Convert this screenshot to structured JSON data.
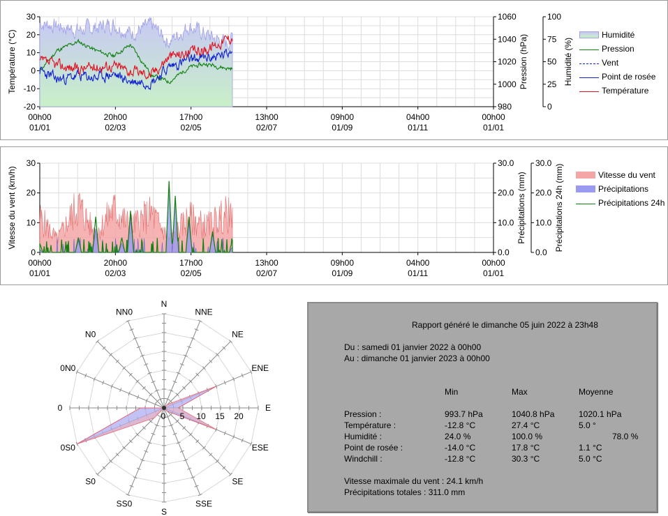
{
  "colors": {
    "temperature": "#e01020",
    "dewpoint": "#1020d0",
    "pressure": "#108010",
    "wind_line": "#1020d0",
    "humidity_fill_top": "#c8c8f4",
    "humidity_fill_bottom": "#c8f0c8",
    "wind_fill": "#f4a6a6",
    "precip_fill": "#9a9af0",
    "precip24": "#108010",
    "report_bg": "#a8a8a8",
    "rose_fill": "#a8a8f0",
    "rose_line": "#e06070"
  },
  "x_ticks": [
    {
      "time": "00h00",
      "date": "01/01"
    },
    {
      "time": "20h00",
      "date": "02/03"
    },
    {
      "time": "17h00",
      "date": "02/05"
    },
    {
      "time": "13h00",
      "date": "02/07"
    },
    {
      "time": "09h00",
      "date": "01/09"
    },
    {
      "time": "04h00",
      "date": "01/11"
    },
    {
      "time": "00h00",
      "date": "01/01"
    }
  ],
  "chart1": {
    "ylabel_left": "Température (°C)",
    "ylabel_pressure": "Pression (hPa)",
    "ylabel_humidity": "Humidité (%)",
    "temp_ticks": [
      "30",
      "20",
      "10",
      "0",
      "-10",
      "-20"
    ],
    "pressure_ticks": [
      "1060",
      "1040",
      "1020",
      "1000",
      "980"
    ],
    "humidity_ticks": [
      "100",
      "75",
      "50",
      "25",
      "0"
    ],
    "legend": [
      {
        "name": "Humidité",
        "kind": "fill"
      },
      {
        "name": "Pression",
        "kind": "line"
      },
      {
        "name": "Vent",
        "kind": "dash"
      },
      {
        "name": "Point de rosée",
        "kind": "line"
      },
      {
        "name": "Température",
        "kind": "line"
      }
    ]
  },
  "chart2": {
    "ylabel_left": "Vitesse du vent (km/h)",
    "ylabel_precip": "Précipitations (mm)",
    "ylabel_precip24": "Précipitations 24h (mm)",
    "wind_ticks": [
      "30",
      "20",
      "10",
      "0"
    ],
    "precip_ticks": [
      "30.0",
      "20.0",
      "10.0",
      "0.0"
    ],
    "precip24_ticks": [
      "30.0",
      "20.0",
      "10.0",
      "0.0"
    ],
    "legend": [
      {
        "name": "Vitesse du vent",
        "kind": "fill"
      },
      {
        "name": "Précipitations",
        "kind": "fill"
      },
      {
        "name": "Précipitations 24h",
        "kind": "line"
      }
    ]
  },
  "chart_data": [
    {
      "type": "line",
      "x_range": [
        "2022-01-01 00h00",
        "2023-01-01 00h00"
      ],
      "x_data_end": "2022-06-05 23h48",
      "grid": true,
      "legend_position": "right",
      "ylim_temperature": [
        -20,
        30
      ],
      "ylim_pressure": [
        980,
        1060
      ],
      "ylim_humidity": [
        0,
        100
      ],
      "series": [
        {
          "name": "Température",
          "axis": "temperature",
          "x": [
            "01/01",
            "15/01",
            "01/02",
            "15/02",
            "01/03",
            "15/03",
            "01/04",
            "15/04",
            "01/05",
            "15/05",
            "01/06",
            "05/06"
          ],
          "values": [
            5,
            3,
            1,
            2,
            3,
            0,
            -2,
            8,
            10,
            12,
            18,
            19
          ]
        },
        {
          "name": "Point de rosée",
          "axis": "temperature",
          "x": [
            "01/01",
            "15/01",
            "01/02",
            "15/02",
            "01/03",
            "15/03",
            "01/04",
            "15/04",
            "01/05",
            "15/05",
            "01/06",
            "05/06"
          ],
          "values": [
            0,
            -5,
            -3,
            -4,
            -2,
            -6,
            -6,
            2,
            6,
            7,
            9,
            14
          ]
        },
        {
          "name": "Pression",
          "axis": "pressure",
          "x": [
            "01/01",
            "15/01",
            "01/02",
            "15/02",
            "01/03",
            "15/03",
            "01/04",
            "15/04",
            "01/05",
            "15/05",
            "01/06",
            "05/06"
          ],
          "values": [
            1012,
            1030,
            1038,
            1030,
            1025,
            1035,
            1008,
            1002,
            1015,
            1018,
            1014,
            1014
          ]
        },
        {
          "name": "Humidité",
          "axis": "humidity",
          "x": [
            "01/01",
            "15/01",
            "01/02",
            "15/02",
            "01/03",
            "15/03",
            "01/04",
            "15/04",
            "01/05",
            "15/05",
            "01/06",
            "05/06"
          ],
          "values": [
            93,
            90,
            85,
            88,
            92,
            82,
            90,
            72,
            90,
            80,
            70,
            78
          ]
        }
      ]
    },
    {
      "type": "area",
      "x_range": [
        "2022-01-01 00h00",
        "2023-01-01 00h00"
      ],
      "grid": true,
      "legend_position": "right",
      "ylim_wind": [
        0,
        30
      ],
      "ylim_precip": [
        0,
        30
      ],
      "series": [
        {
          "name": "Vitesse du vent",
          "axis": "wind",
          "x": [
            "01/01",
            "15/01",
            "01/02",
            "15/02",
            "01/03",
            "15/03",
            "01/04",
            "15/04",
            "01/05",
            "15/05",
            "01/06",
            "05/06"
          ],
          "values": [
            16,
            6,
            22,
            8,
            20,
            12,
            18,
            6,
            16,
            12,
            18,
            14
          ]
        },
        {
          "name": "Précipitations",
          "axis": "precip",
          "x": [
            "01/01",
            "01/02",
            "15/02",
            "08/03",
            "15/03",
            "15/04",
            "20/04",
            "01/05",
            "20/05",
            "05/06"
          ],
          "values": [
            1,
            4,
            8,
            3,
            12,
            23,
            18,
            10,
            6,
            2
          ]
        },
        {
          "name": "Précipitations 24h",
          "axis": "precip",
          "x": [
            "01/01",
            "01/02",
            "15/02",
            "08/03",
            "15/03",
            "15/04",
            "20/04",
            "01/05",
            "20/05",
            "05/06"
          ],
          "values": [
            3,
            5,
            12,
            5,
            14,
            24,
            19,
            12,
            7,
            4
          ]
        }
      ]
    },
    {
      "type": "radar",
      "title": "",
      "directions": [
        "N",
        "NNE",
        "NE",
        "ENE",
        "E",
        "ESE",
        "SE",
        "SSE",
        "S",
        "SS0",
        "S0",
        "0S0",
        "0",
        "0N0",
        "N0",
        "NN0"
      ],
      "radial_ticks": [
        "0",
        "5",
        "10",
        "15",
        "20"
      ],
      "rmax": 20,
      "values": [
        0,
        0,
        1,
        12,
        3,
        12,
        1,
        0,
        0,
        0,
        3,
        20,
        5,
        0,
        0,
        0
      ]
    }
  ],
  "report": {
    "title": "Rapport généré le dimanche 05 juin 2022 à 23h48",
    "from": "Du : samedi 01 janvier 2022 à 00h00",
    "to": "Au : dimanche 01 janvier 2023 à 00h00",
    "header": {
      "min": "Min",
      "max": "Max",
      "avg": "Moyenne"
    },
    "rows": [
      {
        "label": "Pression :",
        "min": "993.7 hPa",
        "max": "1040.8 hPa",
        "avg": "1020.1 hPa"
      },
      {
        "label": "Température :",
        "min": "-12.8 °C",
        "max": "27.4 °C",
        "avg": "5.0 °"
      },
      {
        "label": "Humidité :",
        "min": "24.0 %",
        "max": "100.0 %",
        "avg": "78.0 %"
      },
      {
        "label": "Point de rosée :",
        "min": "-14.0 °C",
        "max": "17.8 °C",
        "avg": "1.1 °C"
      },
      {
        "label": "Windchill :",
        "min": "-12.8 °C",
        "max": "30.3 °C",
        "avg": "5.0 °C"
      }
    ],
    "max_wind": "Vitesse maximale du vent : 24.1 km/h",
    "total_precip": "Précipitations totales : 311.0 mm"
  }
}
